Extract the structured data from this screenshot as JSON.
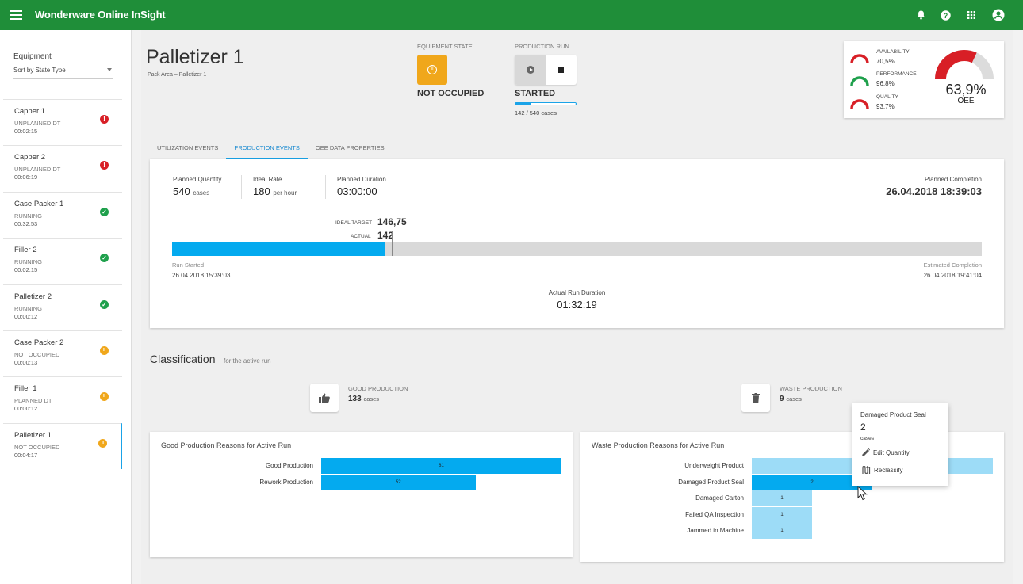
{
  "app": {
    "title": "Wonderware Online InSight"
  },
  "topbar_icons": [
    "bell-icon",
    "help-icon",
    "apps-icon",
    "account-icon"
  ],
  "sidebar": {
    "heading": "Equipment",
    "sort_label": "Sort by State Type",
    "items": [
      {
        "name": "Capper 1",
        "state": "UNPLANNED DT",
        "time": "00:02:15",
        "status": "error"
      },
      {
        "name": "Capper 2",
        "state": "UNPLANNED DT",
        "time": "00:06:19",
        "status": "error"
      },
      {
        "name": "Case Packer 1",
        "state": "RUNNING",
        "time": "00:32:53",
        "status": "ok"
      },
      {
        "name": "Filler 2",
        "state": "RUNNING",
        "time": "00:02:15",
        "status": "ok"
      },
      {
        "name": "Palletizer 2",
        "state": "RUNNING",
        "time": "00:00:12",
        "status": "ok"
      },
      {
        "name": "Case Packer 2",
        "state": "NOT OCCUPIED",
        "time": "00:00:13",
        "status": "paused"
      },
      {
        "name": "Filler 1",
        "state": "PLANNED DT",
        "time": "00:00:12",
        "status": "paused"
      },
      {
        "name": "Palletizer 1",
        "state": "NOT OCCUPIED",
        "time": "00:04:17",
        "status": "paused"
      }
    ]
  },
  "header": {
    "title": "Palletizer 1",
    "breadcrumb": "Pack Area – Palletizer 1",
    "equipment_state_label": "EQUIPMENT STATE",
    "equipment_state_value": "NOT OCCUPIED",
    "production_run_label": "PRODUCTION RUN",
    "production_run_value": "STARTED",
    "production_run_count": "142 / 540 cases",
    "production_run_progress": 0.263
  },
  "kpis": {
    "availability": {
      "label": "AVAILABILITY",
      "value": "70,5%"
    },
    "performance": {
      "label": "PERFORMANCE",
      "value": "96,8%"
    },
    "quality": {
      "label": "QUALITY",
      "value": "93,7%"
    },
    "oee": {
      "label": "OEE",
      "value": "63,9%",
      "fraction": 0.639
    }
  },
  "colors": {
    "accent": "#1aa3e8",
    "topbar": "#1f8e39",
    "bar_dark": "#04aaef",
    "bar_light": "#9ddcf7",
    "red": "#d81f26",
    "green": "#1fa04c",
    "amber": "#f0a71b"
  },
  "tabs": [
    {
      "label": "UTILIZATION EVENTS",
      "active": false
    },
    {
      "label": "PRODUCTION EVENTS",
      "active": true
    },
    {
      "label": "OEE DATA PROPERTIES",
      "active": false
    }
  ],
  "production": {
    "planned_quantity_label": "Planned Quantity",
    "planned_quantity_value": "540",
    "planned_quantity_unit": "cases",
    "ideal_rate_label": "Ideal Rate",
    "ideal_rate_value": "180",
    "ideal_rate_unit": "per hour",
    "planned_duration_label": "Planned Duration",
    "planned_duration_value": "03:00:00",
    "planned_completion_label": "Planned Completion",
    "planned_completion_value": "26.04.2018 18:39:03",
    "ideal_target_label": "IDEAL TARGET",
    "ideal_target_value": "146,75",
    "actual_label": "ACTUAL",
    "actual_value": "142",
    "run_started_label": "Run Started",
    "run_started_value": "26.04.2018 15:39:03",
    "estimated_completion_label": "Estimated Completion",
    "estimated_completion_value": "26.04.2018 19:41:04",
    "actual_run_duration_label": "Actual Run Duration",
    "actual_run_duration_value": "01:32:19",
    "planned_total": 540,
    "actual_count": 142,
    "ideal_count": 146.75
  },
  "classification": {
    "title": "Classification",
    "subtitle": "for the active run",
    "good_label": "GOOD PRODUCTION",
    "good_value": "133",
    "good_unit": "cases",
    "waste_label": "WASTE PRODUCTION",
    "waste_value": "9",
    "waste_unit": "cases"
  },
  "good_chart": {
    "title": "Good Production Reasons for Active Run",
    "categories": [
      "Good Production",
      "Rework Production"
    ],
    "values": [
      81,
      52
    ],
    "xlim": [
      0,
      81
    ]
  },
  "waste_chart": {
    "title": "Waste Production Reasons for Active Run",
    "categories": [
      "Underweight Product",
      "Damaged Product Seal",
      "Damaged Carton",
      "Failed QA Inspection",
      "Jammed in Machine"
    ],
    "values": [
      4,
      2,
      1,
      1,
      1
    ],
    "highlighted": "Damaged Product Seal",
    "xlim": [
      0,
      4
    ]
  },
  "tooltip": {
    "name": "Damaged Product Seal",
    "value": "2",
    "unit": "cases",
    "edit_label": "Edit Quantity",
    "reclassify_label": "Reclassify"
  }
}
